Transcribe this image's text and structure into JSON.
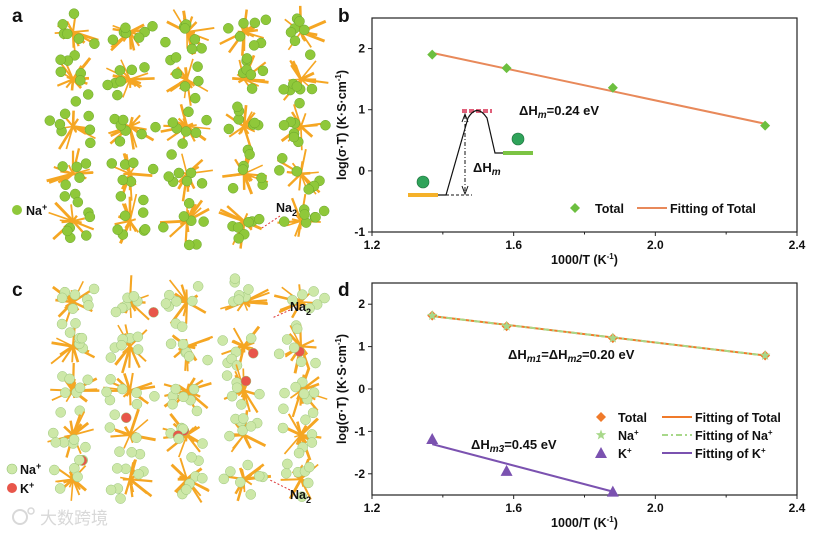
{
  "panels": {
    "a": {
      "label": "a",
      "legend": [
        {
          "text": "Na",
          "sup": "+",
          "color": "#8fc83a"
        }
      ],
      "site_label": {
        "base": "Na",
        "sub": "2"
      }
    },
    "c": {
      "label": "c",
      "legend": [
        {
          "text": "Na",
          "sup": "+",
          "color": "#cde8a8"
        },
        {
          "text": "K",
          "sup": "+",
          "color": "#e8564a"
        }
      ],
      "site_labels": [
        {
          "base": "Na",
          "sub": "2"
        },
        {
          "base": "Na",
          "sub": "2"
        }
      ]
    }
  },
  "watermark": "大数跨境",
  "chart_data": [
    {
      "panel_label": "b",
      "type": "scatter",
      "xlabel": {
        "main": "1000/T (K",
        "sup": "-1",
        "end": ")"
      },
      "ylabel": {
        "main": "log(σ·T) (K·S·cm",
        "sup": "-1",
        "end": ")"
      },
      "xlim": [
        1.2,
        2.4
      ],
      "ylim": [
        -1,
        2.5
      ],
      "xticks": [
        "1.2",
        "1.6",
        "2.0",
        "2.4"
      ],
      "yticks": [
        "-1",
        "0",
        "1",
        "2"
      ],
      "series": [
        {
          "name": "Total",
          "kind": "marker",
          "marker": "diamond",
          "color": "#6cbf3f",
          "x": [
            1.37,
            1.58,
            1.88,
            2.31
          ],
          "y": [
            1.9,
            1.68,
            1.36,
            0.74
          ]
        },
        {
          "name": "Fitting of Total",
          "kind": "line",
          "color": "#e8895a",
          "x": [
            1.37,
            2.31
          ],
          "y": [
            1.93,
            0.77
          ]
        }
      ],
      "legend_position": "bottom-right",
      "annotation": {
        "delta": "ΔH",
        "sub": "m",
        "value": "=0.24 eV"
      },
      "inset_label": {
        "delta": "ΔH",
        "sub": "m"
      }
    },
    {
      "panel_label": "d",
      "type": "scatter",
      "xlabel": {
        "main": "1000/T (K",
        "sup": "-1",
        "end": ")"
      },
      "ylabel": {
        "main": "log(σ·T) (K·S·cm",
        "sup": "-1",
        "end": ")"
      },
      "xlim": [
        1.2,
        2.4
      ],
      "ylim": [
        -2.5,
        2.5
      ],
      "xticks": [
        "1.2",
        "1.6",
        "2.0",
        "2.4"
      ],
      "yticks": [
        "-2",
        "-1",
        "0",
        "1",
        "2"
      ],
      "series": [
        {
          "name": "Total",
          "kind": "marker",
          "marker": "diamond",
          "color": "#f07a2a",
          "x": [
            1.37,
            1.58,
            1.88,
            2.31
          ],
          "y": [
            1.73,
            1.48,
            1.2,
            0.79
          ]
        },
        {
          "name": "Na+",
          "kind": "marker",
          "marker": "star",
          "color": "#a8d88a",
          "x": [
            1.37,
            1.58,
            1.88,
            2.31
          ],
          "y": [
            1.73,
            1.48,
            1.2,
            0.79
          ]
        },
        {
          "name": "K+",
          "kind": "marker",
          "marker": "triangle",
          "color": "#7b52b0",
          "x": [
            1.37,
            1.58,
            1.88
          ],
          "y": [
            -1.18,
            -1.93,
            -2.42
          ]
        },
        {
          "name": "Fitting of Total",
          "kind": "line",
          "color": "#f07a2a",
          "x": [
            1.37,
            2.31
          ],
          "y": [
            1.72,
            0.79
          ]
        },
        {
          "name": "Fitting of Na+",
          "kind": "line",
          "dash": true,
          "color": "#a8d88a",
          "x": [
            1.37,
            2.31
          ],
          "y": [
            1.72,
            0.79
          ]
        },
        {
          "name": "Fitting of K+",
          "kind": "line",
          "color": "#7b52b0",
          "x": [
            1.37,
            1.88
          ],
          "y": [
            -1.3,
            -2.42
          ]
        }
      ],
      "legend": [
        {
          "text": "Total",
          "sup": ""
        },
        {
          "text": "Na",
          "sup": "+"
        },
        {
          "text": "K",
          "sup": "+"
        },
        {
          "text": "Fitting of Total",
          "sup": ""
        },
        {
          "text": "Fitting of Na",
          "sup": "+"
        },
        {
          "text": "Fitting of K",
          "sup": "+"
        }
      ],
      "legend_position": "bottom-right",
      "annotations": [
        {
          "parts": [
            {
              "t": "ΔH"
            },
            {
              "t": "m1",
              "sub": true
            },
            {
              "t": "=ΔH"
            },
            {
              "t": "m2",
              "sub": true
            },
            {
              "t": "=0.20 eV"
            }
          ]
        },
        {
          "parts": [
            {
              "t": "ΔH"
            },
            {
              "t": "m3",
              "sub": true
            },
            {
              "t": "=0.45 eV"
            }
          ]
        }
      ]
    }
  ]
}
